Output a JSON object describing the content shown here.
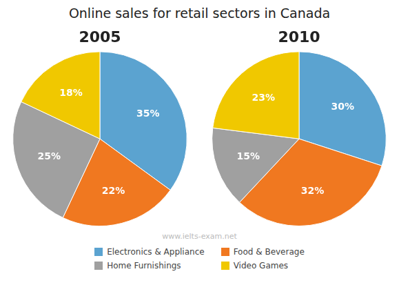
{
  "chart_data": {
    "type": "pie",
    "title": "Online sales for retail sectors in Canada",
    "categories": [
      "Electronics & Appliance",
      "Food & Beverage",
      "Home Furnishings",
      "Video Games"
    ],
    "colors": [
      "#5BA3D0",
      "#F07820",
      "#A0A0A0",
      "#F0C800"
    ],
    "series": [
      {
        "name": "2005",
        "values": [
          35,
          22,
          25,
          18
        ],
        "value_labels": [
          "35%",
          "22%",
          "25%",
          "18%"
        ]
      },
      {
        "name": "2010",
        "values": [
          30,
          32,
          15,
          23
        ],
        "value_labels": [
          "30%",
          "32%",
          "15%",
          "23%"
        ]
      }
    ],
    "data_labels": true,
    "legend": "bottom",
    "annotations": [
      "www.ielts-exam.net"
    ]
  }
}
